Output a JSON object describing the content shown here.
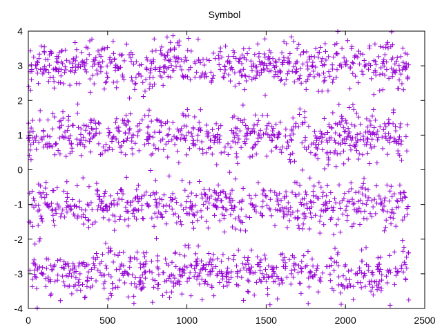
{
  "chart_data": {
    "type": "scatter",
    "title": "Symbol",
    "xlabel": "",
    "ylabel": "",
    "xlim": [
      0,
      2500
    ],
    "ylim": [
      -4,
      4
    ],
    "x_ticks": [
      "0",
      "500",
      "1000",
      "1500",
      "2000",
      "2500"
    ],
    "y_ticks": [
      "-4",
      "-3",
      "-2",
      "-1",
      "0",
      "1",
      "2",
      "3",
      "4"
    ],
    "x_tick_values": [
      0,
      500,
      1000,
      1500,
      2000,
      2500
    ],
    "y_tick_values": [
      -4,
      -3,
      -2,
      -1,
      0,
      1,
      2,
      3,
      4
    ],
    "grid": false,
    "legend": "none",
    "marker": "plus",
    "color": "#9400d3",
    "series": [
      {
        "n_points": 2400,
        "x_start": 0,
        "x_step": 1,
        "value_pattern": "noisy multi-band symbol values clustered near ±3 and ±1, spanning -4 to 4"
      }
    ]
  }
}
